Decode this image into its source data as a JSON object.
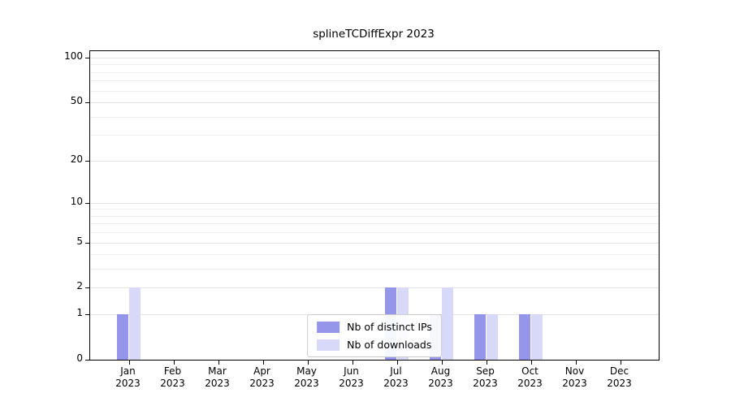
{
  "chart_data": {
    "type": "bar",
    "title": "splineTCDiffExpr 2023",
    "categories": [
      "Jan",
      "Feb",
      "Mar",
      "Apr",
      "May",
      "Jun",
      "Jul",
      "Aug",
      "Sep",
      "Oct",
      "Nov",
      "Dec"
    ],
    "year": "2023",
    "series": [
      {
        "name": "Nb of distinct IPs",
        "color": "#9595ea",
        "values": [
          1,
          0,
          0,
          0,
          0,
          0,
          2,
          1,
          1,
          1,
          0,
          0
        ]
      },
      {
        "name": "Nb of downloads",
        "color": "#d8d8f8",
        "values": [
          2,
          0,
          0,
          0,
          0,
          0,
          2,
          2,
          1,
          1,
          0,
          0
        ]
      }
    ],
    "yticks": [
      0,
      1,
      2,
      5,
      10,
      20,
      50,
      100
    ],
    "minor_gridlines": [
      3,
      4,
      6,
      7,
      8,
      9,
      30,
      40,
      60,
      70,
      80,
      90
    ],
    "ylim": [
      0,
      100
    ],
    "scale": "log1p",
    "grid": true,
    "legend_position": "lower center"
  }
}
